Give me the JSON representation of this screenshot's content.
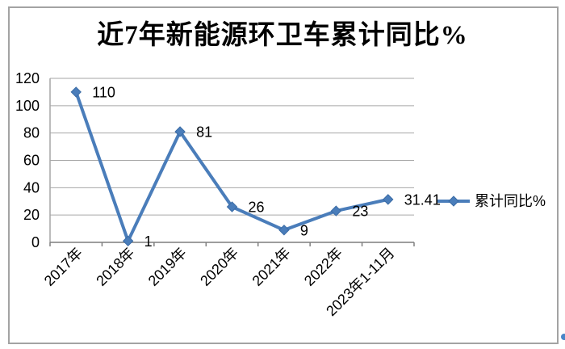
{
  "chart_data": {
    "type": "line",
    "title": "近7年新能源环卫车累计同比%",
    "categories": [
      "2017年",
      "2018年",
      "2019年",
      "2020年",
      "2021年",
      "2022年",
      "2023年1-11月"
    ],
    "series": [
      {
        "name": "累计同比%",
        "values": [
          110,
          1,
          81,
          26,
          9,
          23,
          31.41
        ]
      }
    ],
    "data_labels": [
      "110",
      "1",
      "81",
      "26",
      "9",
      "23",
      "31.41"
    ],
    "xlabel": "",
    "ylabel": "",
    "ylim": [
      0,
      120
    ],
    "ytick_step": 20,
    "yticks": [
      0,
      20,
      40,
      60,
      80,
      100,
      120
    ],
    "grid": true,
    "x_label_rotation": -45,
    "legend": {
      "label": "累计同比%",
      "position": "right"
    },
    "colors": {
      "line": "#4a7dba",
      "marker": "#4a7dba",
      "marker_edge": "#3a6ba5",
      "grid": "#a6a6a6",
      "axis": "#7f7f7f",
      "text": "#000000",
      "frame_border": "#a3a3a3",
      "corner_dot": "#4a86c8",
      "background": "#ffffff"
    }
  }
}
